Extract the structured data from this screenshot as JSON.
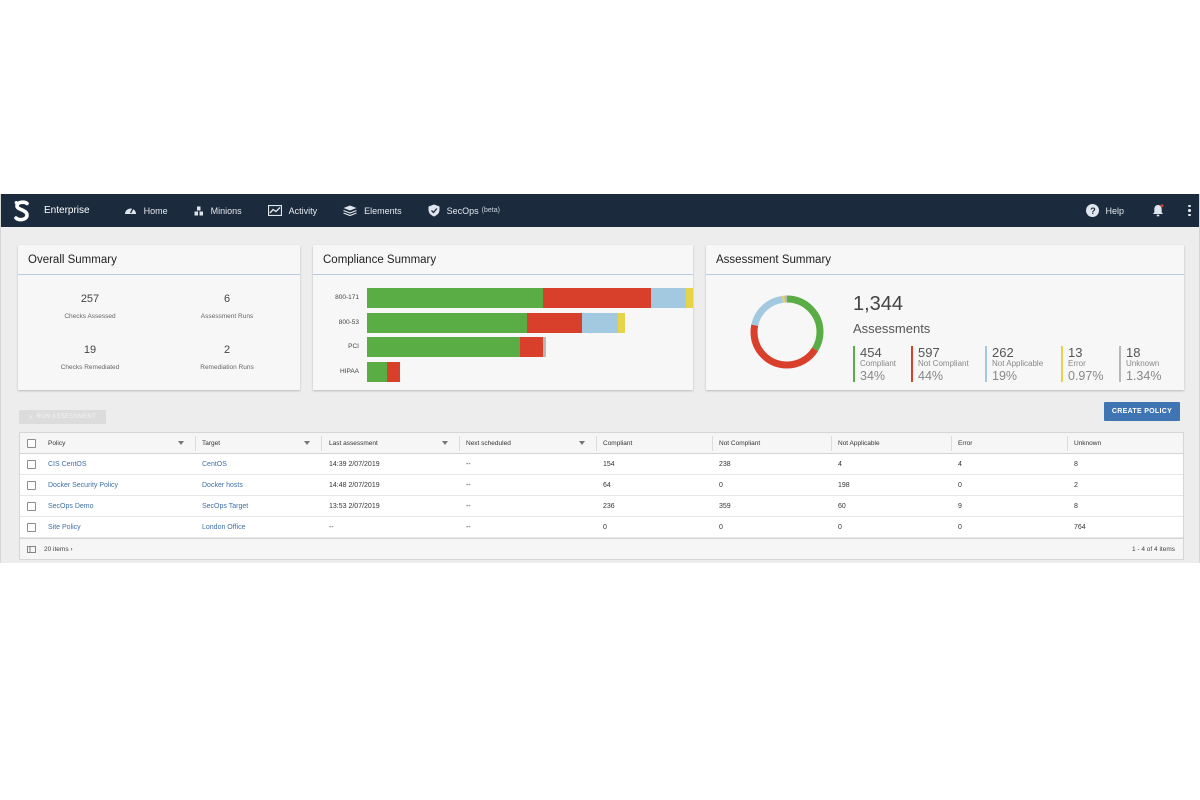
{
  "navbar": {
    "brand": "Enterprise",
    "items": [
      {
        "label": "Home",
        "icon": "dashboard-gauge-icon"
      },
      {
        "label": "Minions",
        "icon": "minions-icon"
      },
      {
        "label": "Activity",
        "icon": "activity-chart-icon"
      },
      {
        "label": "Elements",
        "icon": "layers-icon"
      },
      {
        "label": "SecOps",
        "badge": "(beta)",
        "icon": "shield-check-icon"
      }
    ],
    "help_label": "Help",
    "colors": {
      "background": "#1b2a3d",
      "text": "#e4e9ef"
    }
  },
  "overall_summary": {
    "title": "Overall Summary",
    "stats": [
      {
        "value": "257",
        "label": "Checks Assessed"
      },
      {
        "value": "6",
        "label": "Assessment Runs"
      },
      {
        "value": "19",
        "label": "Checks Remediated"
      },
      {
        "value": "2",
        "label": "Remediation Runs"
      }
    ]
  },
  "compliance_summary": {
    "title": "Compliance Summary",
    "chart_data": {
      "type": "bar",
      "orientation": "horizontal",
      "stacked": true,
      "categories": [
        "800-171",
        "800-53",
        "PCI",
        "HIPAA"
      ],
      "series": [
        {
          "name": "Compliant",
          "color": "#5aac44",
          "values": [
            54,
            49,
            47,
            6
          ]
        },
        {
          "name": "Not Compliant",
          "color": "#d9402b",
          "values": [
            33,
            17,
            7,
            4
          ]
        },
        {
          "name": "Not Applicable",
          "color": "#a3c9e0",
          "values": [
            11,
            11,
            0,
            0
          ]
        },
        {
          "name": "Error",
          "color": "#e6d34a",
          "values": [
            2,
            2,
            0,
            0
          ]
        },
        {
          "name": "Unknown",
          "color": "#b8b8b8",
          "values": [
            0,
            0,
            1,
            0
          ]
        }
      ],
      "xlim": [
        0,
        100
      ],
      "grid": false,
      "legend": "none"
    }
  },
  "assessment_summary": {
    "title": "Assessment Summary",
    "total": "1,344",
    "total_label": "Assessments",
    "legend": [
      {
        "value": "454",
        "label": "Compliant",
        "percent": "34%",
        "color": "#5aac44"
      },
      {
        "value": "597",
        "label": "Not Compliant",
        "percent": "44%",
        "color": "#d9402b"
      },
      {
        "value": "262",
        "label": "Not Applicable",
        "percent": "19%",
        "color": "#a3c9e0"
      },
      {
        "value": "13",
        "label": "Error",
        "percent": "0.97%",
        "color": "#e6d34a"
      },
      {
        "value": "18",
        "label": "Unknown",
        "percent": "1.34%",
        "color": "#b8b8b8"
      }
    ],
    "chart_data": {
      "type": "pie",
      "donut": true,
      "labels": [
        "Compliant",
        "Not Compliant",
        "Not Applicable",
        "Error",
        "Unknown"
      ],
      "values": [
        454,
        597,
        262,
        13,
        18
      ],
      "colors": [
        "#5aac44",
        "#d9402b",
        "#a3c9e0",
        "#e6d34a",
        "#b8b8b8"
      ]
    }
  },
  "toolbar": {
    "run_assessment_label": "RUN ASSESSMENT",
    "create_policy_label": "CREATE POLICY",
    "create_policy_color": "#3f75b2"
  },
  "table": {
    "columns": [
      "Policy",
      "Target",
      "Last assessment",
      "Next scheduled",
      "Compliant",
      "Not Compliant",
      "Not Applicable",
      "Error",
      "Unknown"
    ],
    "rows": [
      {
        "policy": "CIS CentOS",
        "target": "CentOS",
        "last_assessment": "14:39 2/07/2019",
        "next_scheduled": "--",
        "compliant": "154",
        "not_compliant": "238",
        "not_applicable": "4",
        "error": "4",
        "unknown": "8"
      },
      {
        "policy": "Docker Security Policy",
        "target": "Docker hosts",
        "last_assessment": "14:48 2/07/2019",
        "next_scheduled": "--",
        "compliant": "64",
        "not_compliant": "0",
        "not_applicable": "198",
        "error": "0",
        "unknown": "2"
      },
      {
        "policy": "SecOps Demo",
        "target": "SecOps Target",
        "last_assessment": "13:53 2/07/2019",
        "next_scheduled": "--",
        "compliant": "236",
        "not_compliant": "359",
        "not_applicable": "60",
        "error": "9",
        "unknown": "8"
      },
      {
        "policy": "Site Policy",
        "target": "London Office",
        "last_assessment": "--",
        "next_scheduled": "--",
        "compliant": "0",
        "not_compliant": "0",
        "not_applicable": "0",
        "error": "0",
        "unknown": "764"
      }
    ],
    "footer": {
      "page_size": "20 items",
      "range": "1 - 4 of 4 items"
    }
  }
}
